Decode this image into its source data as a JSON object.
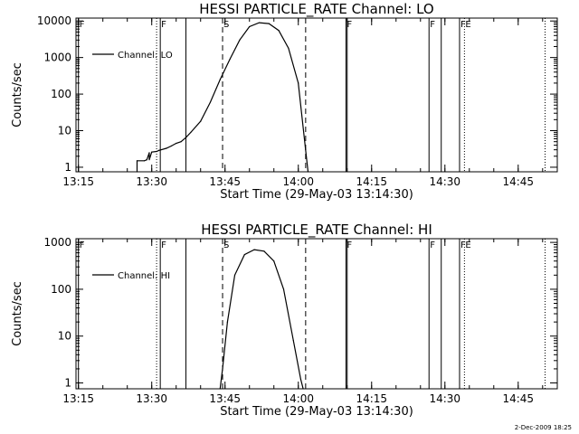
{
  "footer": {
    "stamp": "2-Dec-2009 18:25"
  },
  "chart_data": [
    {
      "type": "line",
      "title": "HESSI PARTICLE_RATE Channel: LO",
      "xlabel": "Start Time (29-May-03 13:14:30)",
      "ylabel": "Counts/sec",
      "y_scale": "log",
      "xlim": [
        "13:14:30",
        "14:53:00"
      ],
      "ylim": [
        0.75,
        12000
      ],
      "x_ticks": [
        "13:15",
        "13:30",
        "13:45",
        "14:00",
        "14:15",
        "14:30",
        "14:45"
      ],
      "y_ticks": [
        "1",
        "10",
        "100",
        "1000",
        "10000"
      ],
      "legend": {
        "placement": "top-left",
        "label": "Channel: LO"
      },
      "grid": false,
      "series": [
        {
          "name": "Channel: LO",
          "x": [
            "13:27:00",
            "13:27:00",
            "13:28:30",
            "13:29:00",
            "13:29:30",
            "13:29:30",
            "13:30:00",
            "13:31:00",
            "13:31:30",
            "13:33:00",
            "13:34:00",
            "13:35:00",
            "13:36:00",
            "13:37:00",
            "13:38:00",
            "13:40:00",
            "13:42:00",
            "13:44:00",
            "13:46:00",
            "13:48:00",
            "13:50:00",
            "13:52:00",
            "13:54:00",
            "13:56:00",
            "13:58:00",
            "14:00:00",
            "14:01:30",
            "14:02:00"
          ],
          "y": [
            0.75,
            1.5,
            1.5,
            1.6,
            2.5,
            1.6,
            2.6,
            2.7,
            2.9,
            3.3,
            3.8,
            4.5,
            5.0,
            6.5,
            9,
            18,
            60,
            250,
            900,
            3000,
            7000,
            9000,
            8500,
            5500,
            1800,
            200,
            3,
            0.75
          ]
        }
      ],
      "markers": [
        {
          "label": "F",
          "x": "13:15:00",
          "style": "solid"
        },
        {
          "label": "",
          "x": "13:31:00",
          "style": "dotted"
        },
        {
          "label": "F",
          "x": "13:31:45",
          "style": "solid"
        },
        {
          "label": "",
          "x": "13:37:00",
          "style": "solid"
        },
        {
          "label": "S",
          "x": "13:44:30",
          "style": "dashed"
        },
        {
          "label": "",
          "x": "14:01:30",
          "style": "dashed"
        },
        {
          "label": "F",
          "x": "14:09:45",
          "style": "solid"
        },
        {
          "label": "",
          "x": "14:10:00",
          "style": "solid"
        },
        {
          "label": "F",
          "x": "14:26:45",
          "style": "solid"
        },
        {
          "label": "",
          "x": "14:29:15",
          "style": "solid"
        },
        {
          "label": "F",
          "x": "14:33:00",
          "style": "solid"
        },
        {
          "label": "E",
          "x": "14:34:00",
          "style": "dotted"
        },
        {
          "label": "",
          "x": "14:50:30",
          "style": "dotted"
        }
      ]
    },
    {
      "type": "line",
      "title": "HESSI PARTICLE_RATE Channel: HI",
      "xlabel": "Start Time (29-May-03 13:14:30)",
      "ylabel": "Counts/sec",
      "y_scale": "log",
      "xlim": [
        "13:14:30",
        "14:53:00"
      ],
      "ylim": [
        0.75,
        1200
      ],
      "x_ticks": [
        "13:15",
        "13:30",
        "13:45",
        "14:00",
        "14:15",
        "14:30",
        "14:45"
      ],
      "y_ticks": [
        "1",
        "10",
        "100",
        "1000"
      ],
      "legend": {
        "placement": "top-left",
        "label": "Channel: HI"
      },
      "grid": false,
      "series": [
        {
          "name": "Channel: HI",
          "x": [
            "13:44:00",
            "13:44:30",
            "13:45:30",
            "13:47:00",
            "13:49:00",
            "13:51:00",
            "13:53:00",
            "13:55:00",
            "13:57:00",
            "13:59:00",
            "14:00:30",
            "14:01:00"
          ],
          "y": [
            0.75,
            2,
            20,
            200,
            550,
            700,
            650,
            400,
            100,
            8,
            1.2,
            0.75
          ]
        }
      ],
      "markers": [
        {
          "label": "F",
          "x": "13:15:00",
          "style": "solid"
        },
        {
          "label": "",
          "x": "13:31:00",
          "style": "dotted"
        },
        {
          "label": "F",
          "x": "13:31:45",
          "style": "solid"
        },
        {
          "label": "",
          "x": "13:37:00",
          "style": "solid"
        },
        {
          "label": "S",
          "x": "13:44:30",
          "style": "dashed"
        },
        {
          "label": "",
          "x": "14:01:30",
          "style": "dashed"
        },
        {
          "label": "F",
          "x": "14:09:45",
          "style": "solid"
        },
        {
          "label": "",
          "x": "14:10:00",
          "style": "solid"
        },
        {
          "label": "F",
          "x": "14:26:45",
          "style": "solid"
        },
        {
          "label": "",
          "x": "14:29:15",
          "style": "solid"
        },
        {
          "label": "F",
          "x": "14:33:00",
          "style": "solid"
        },
        {
          "label": "E",
          "x": "14:34:00",
          "style": "dotted"
        },
        {
          "label": "",
          "x": "14:50:30",
          "style": "dotted"
        }
      ]
    }
  ]
}
